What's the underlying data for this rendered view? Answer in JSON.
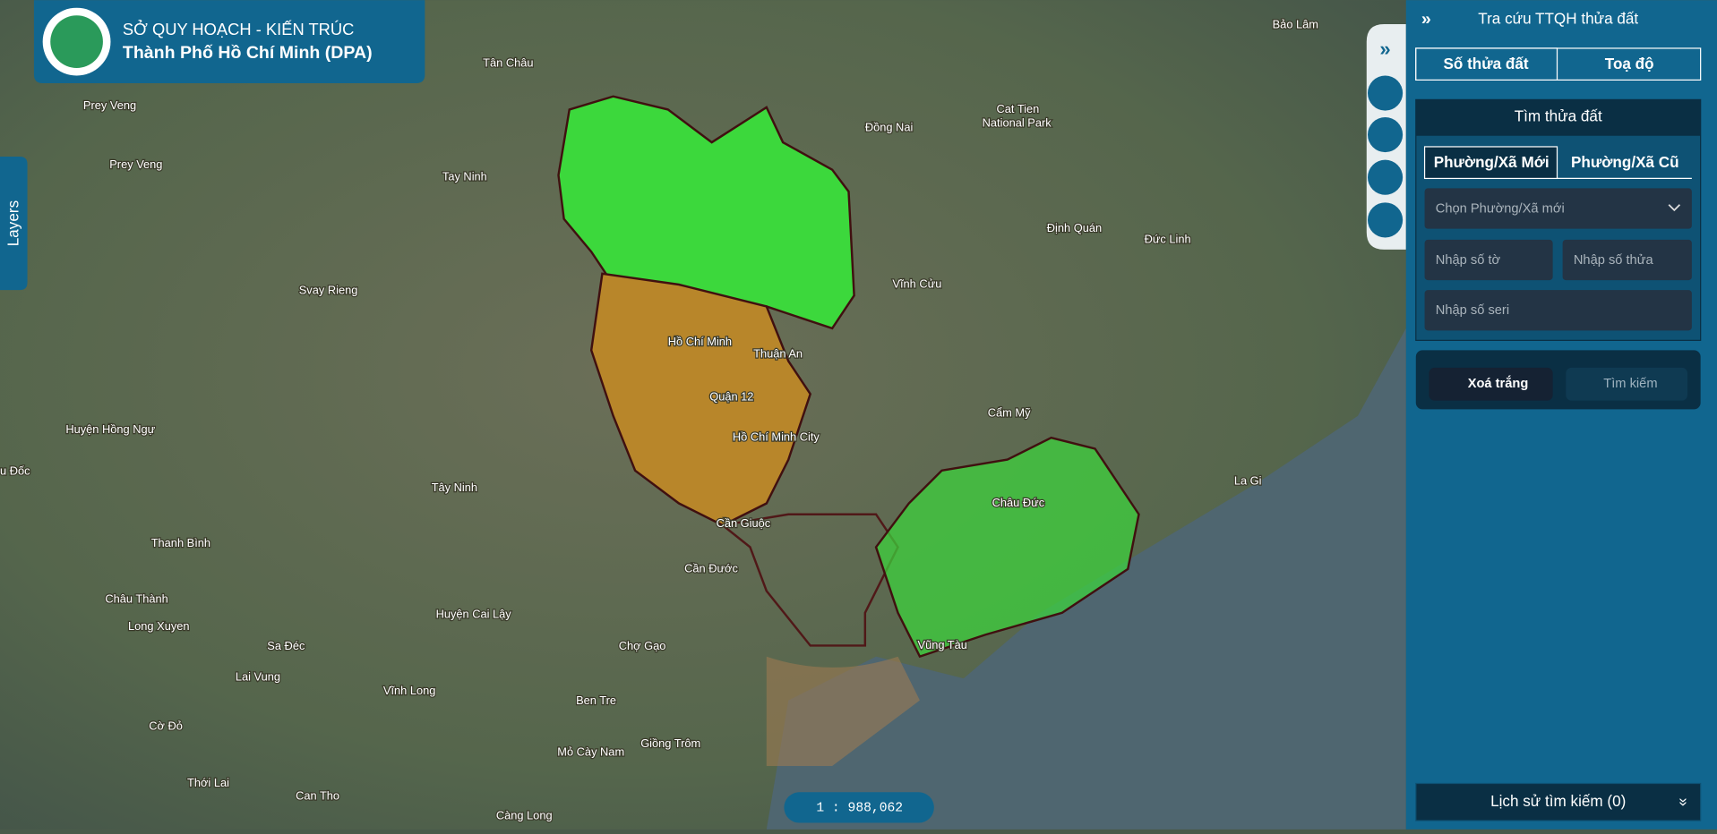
{
  "header": {
    "line1": "SỞ QUY HOẠCH - KIẾN TRÚC",
    "line2": "Thành Phố Hồ Chí Minh (DPA)"
  },
  "layers_tab": "Layers",
  "map_labels": [
    "Bảo Lâm",
    "Tân Châu",
    "Prey Veng",
    "Prey Veng",
    "Tay Ninh",
    "Đồng Nai",
    "Cat Tien",
    "National Park",
    "Định Quán",
    "Đức Linh",
    "Svay Rieng",
    "Vĩnh Cửu",
    "Hồ Chí Minh",
    "Thuận An",
    "Quận 12",
    "Hồ Chí Minh City",
    "Cẩm Mỹ",
    "Huyện Hồng Ngự",
    "u Đốc",
    "Tây Ninh",
    "La Gi",
    "Châu Đức",
    "Cần Giuộc",
    "Thanh Bình",
    "Cần Đước",
    "Châu Thành",
    "Long Xuyen",
    "Huyện Cai Lậy",
    "Sa Đéc",
    "Chợ Gạo",
    "Lai Vung",
    "Vĩnh Long",
    "Vũng Tàu",
    "Ben Tre",
    "Cờ Đỏ",
    "Giồng Trôm",
    "Mỏ Cày Nam",
    "Thới Lai",
    "Can Tho",
    "Càng Long"
  ],
  "scale": "1 : 988,062",
  "sidebar": {
    "title": "Tra cứu TTQH thửa đất",
    "tabs": [
      "Số thửa đất",
      "Toạ độ"
    ],
    "panel": {
      "title": "Tìm thửa đất",
      "subtabs": [
        "Phường/Xã Mới",
        "Phường/Xã Cũ"
      ],
      "select": "Chọn Phường/Xã mới",
      "inputs": [
        "Nhập số tờ",
        "Nhập số thửa",
        "Nhập số seri"
      ]
    },
    "buttons": [
      "Xoá trắng",
      "Tìm kiếm"
    ],
    "history": "Lịch sử tìm kiếm (0)"
  }
}
